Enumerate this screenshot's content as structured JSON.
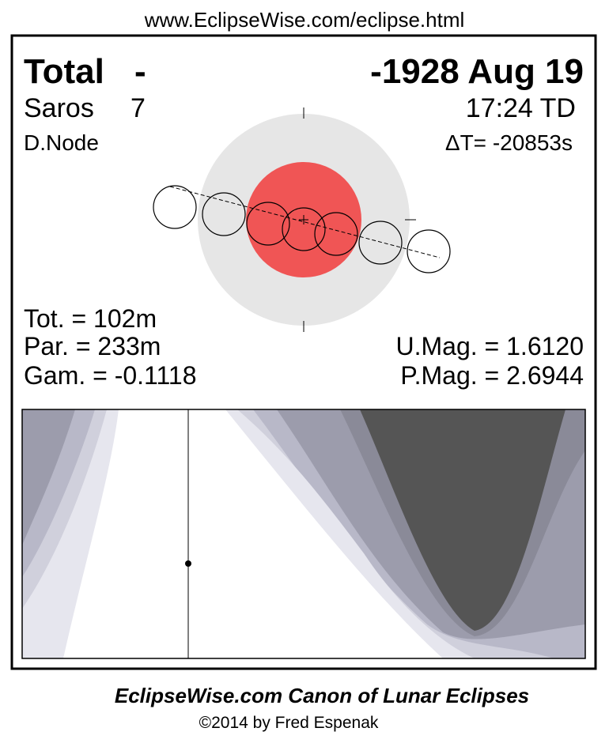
{
  "header": {
    "url": "www.EclipseWise.com/eclipse.html"
  },
  "panel": {
    "type": "Total",
    "dash": "-",
    "date": "-1928 Aug 19",
    "saros_label": "Saros",
    "saros_number": "7",
    "time": "17:24 TD",
    "node": "D.Node",
    "delta_t": "ΔT= -20853s"
  },
  "stats": {
    "tot": "Tot. = 102m",
    "par": "Par. = 233m",
    "gam": "Gam. = -0.1118",
    "umag": "U.Mag. = 1.6120",
    "pmag": "P.Mag. = 2.6944"
  },
  "footer": {
    "title": "EclipseWise.com Canon of Lunar Eclipses",
    "credit": "©2014 by Fred Espenak"
  }
}
